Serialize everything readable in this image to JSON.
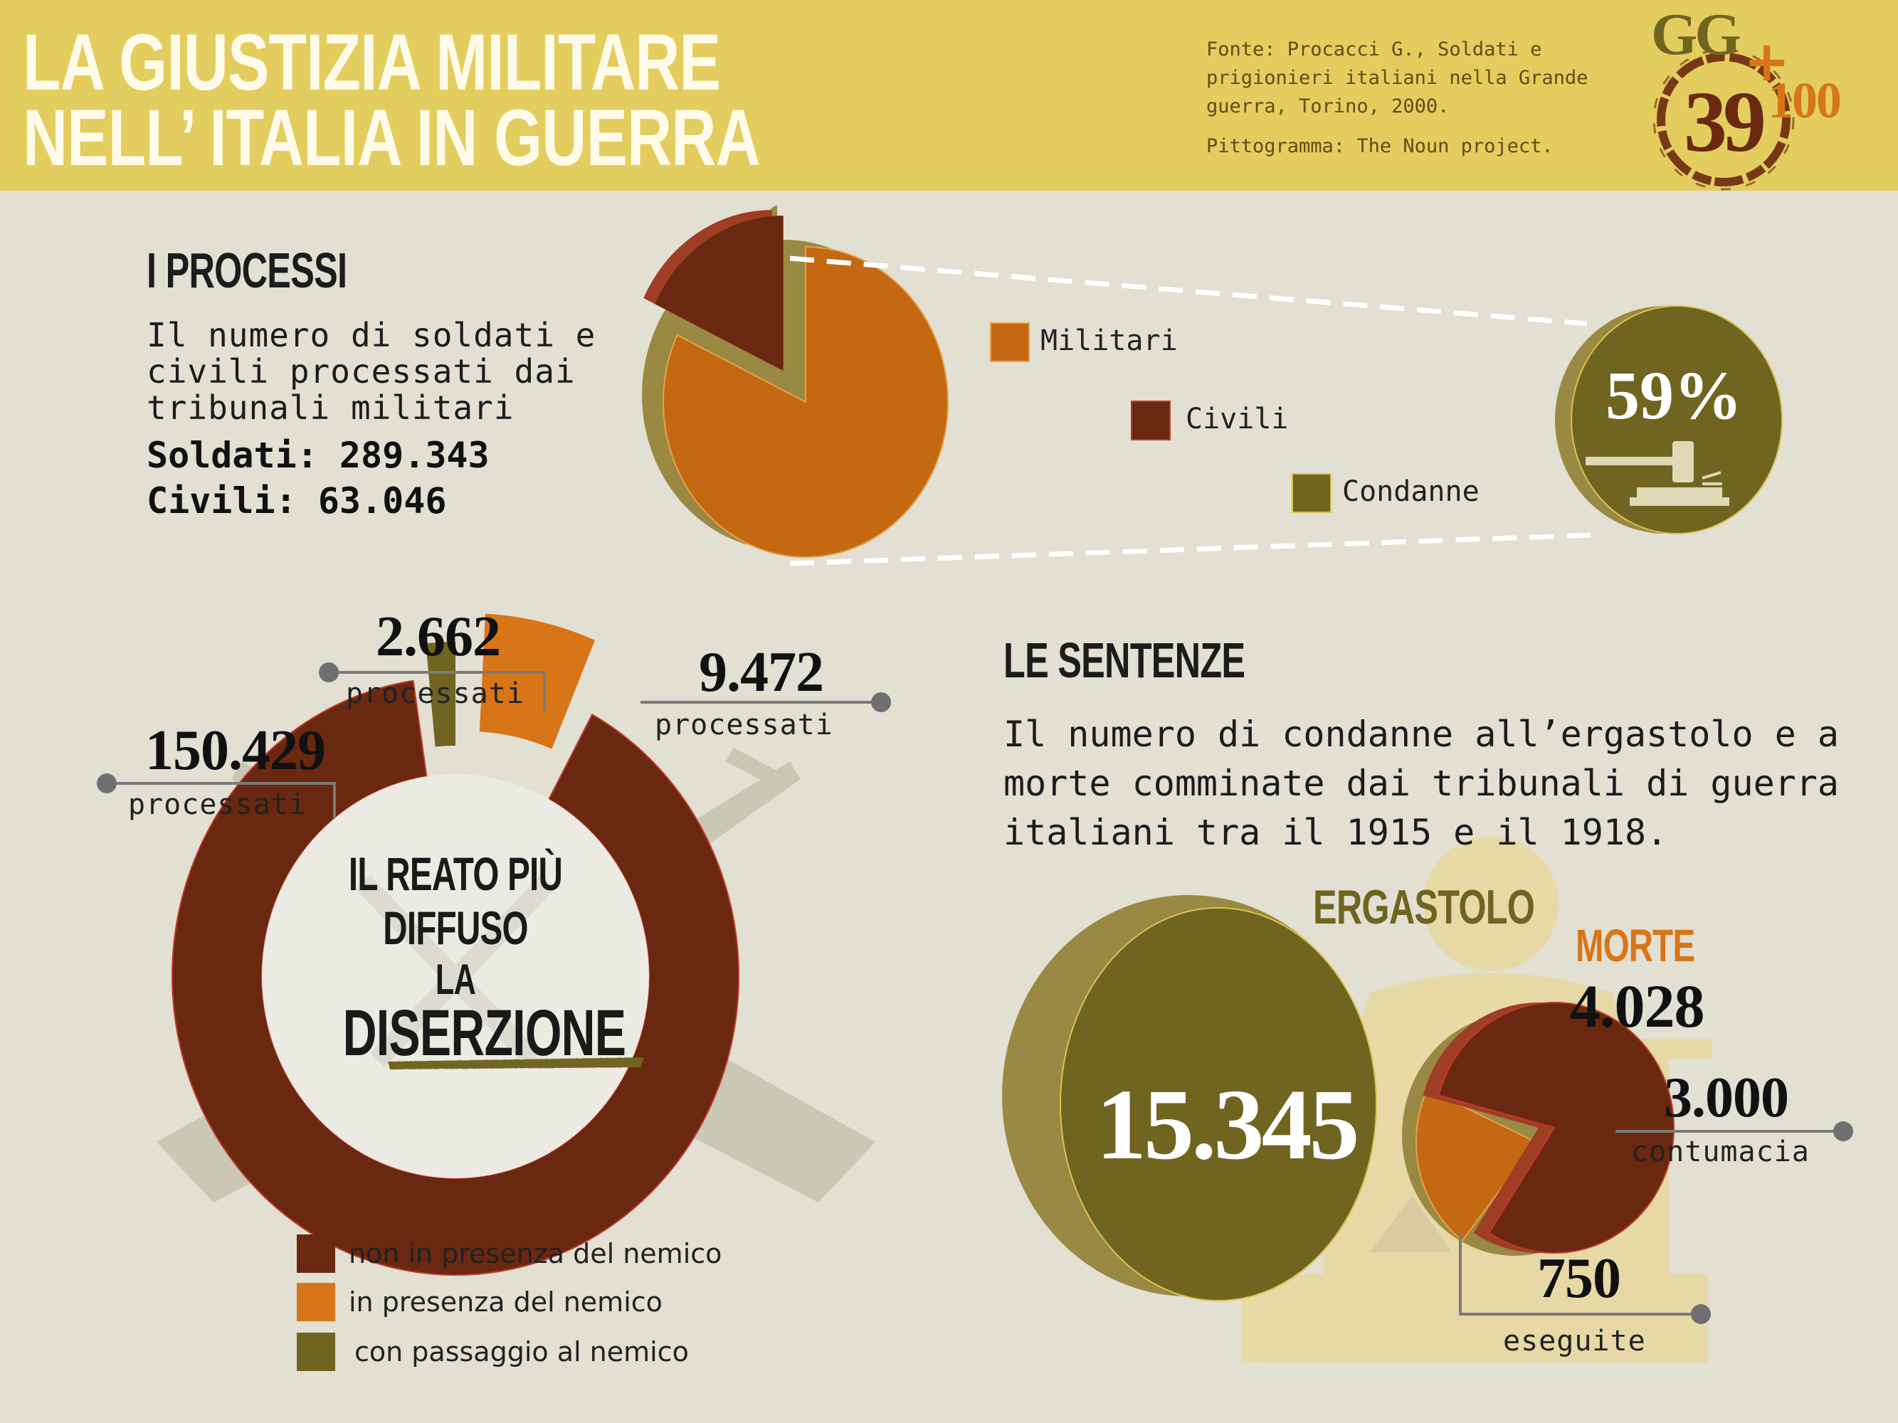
{
  "header": {
    "title_line1": "La giustizia militare",
    "title_line2": "nell’ Italia in guerra",
    "source_line1": "Fonte: Procacci G., Soldati e",
    "source_line2": "prigionieri italiani nella Grande",
    "source_line3": "guerra, Torino, 2000.",
    "pictogram_credit": "Pittogramma: The Noun project.",
    "logo_top": "GG",
    "logo_number": "39",
    "logo_plus": "+",
    "logo_hundred": "100"
  },
  "colors": {
    "header_bg": "#e3cd5e",
    "page_bg": "#e2dfd3",
    "militari": "#c46912",
    "civili": "#6a2810",
    "condanne": "#6f6520",
    "orange": "#d77517",
    "olive": "#6f6520",
    "maroon": "#6a2810",
    "red_light": "#a03d25"
  },
  "processi": {
    "title": "I processi",
    "desc_line1": "Il numero di soldati e",
    "desc_line2": "civili processati dai",
    "desc_line3": "tribunali militari",
    "soldati": "Soldati: 289.343",
    "civili": "Civili: 63.046",
    "legend": {
      "militari": "Militari",
      "civili": "Civili",
      "condanne": "Condanne"
    },
    "condanne_pct": "59%",
    "gavel_icon": "gavel-icon"
  },
  "diserzione": {
    "center_line1": "Il reato più",
    "center_line2": "diffuso",
    "center_line3": "la",
    "center_line4": "diserzione",
    "non_presenza_value": "150.429",
    "non_presenza_label": "processati",
    "passaggio_value": "2.662",
    "passaggio_label": "processati",
    "presenza_value": "9.472",
    "presenza_label": "processati",
    "legend_non_presenza": "non in presenza del nemico",
    "legend_presenza": "in presenza del nemico",
    "legend_passaggio": "con passaggio al nemico",
    "background_icon": "crossed-rifles-icon"
  },
  "sentenze": {
    "title": "Le sentenze",
    "desc_line1": "Il numero di condanne all’ergastolo e a",
    "desc_line2": "morte comminate dai tribunali di guerra",
    "desc_line3": "italiani tra il 1915 e il 1918.",
    "ergastolo_title": "Ergastolo",
    "ergastolo_value": "15.345",
    "morte_title": "Morte",
    "morte_value": "4.028",
    "contumacia_value": "3.000",
    "contumacia_label": "contumacia",
    "eseguite_value": "750",
    "eseguite_label": "eseguite",
    "background_icon": "justice-figure-icon"
  },
  "chart_data": [
    {
      "type": "pie",
      "categories": [
        "Militari",
        "Civili"
      ],
      "values": [
        289343,
        63046
      ],
      "annotations": [
        "Condanne 59%"
      ]
    },
    {
      "type": "pie",
      "categories": [
        "non in presenza del nemico",
        "in presenza del nemico",
        "con passaggio al nemico"
      ],
      "values": [
        150429,
        9472,
        2662
      ]
    },
    {
      "type": "bar",
      "categories": [
        "Ergastolo",
        "Morte"
      ],
      "values": [
        15345,
        4028
      ]
    },
    {
      "type": "pie",
      "categories": [
        "contumacia",
        "eseguite"
      ],
      "values": [
        3000,
        750
      ]
    }
  ]
}
